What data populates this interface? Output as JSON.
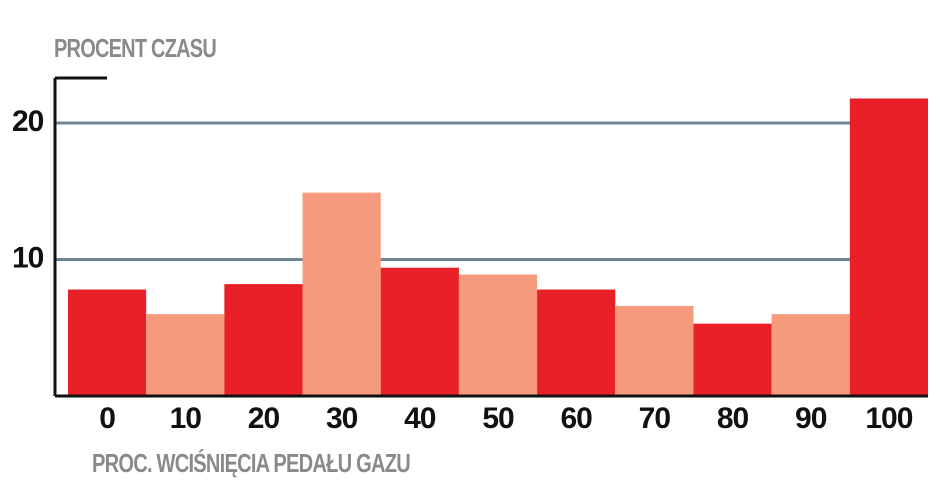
{
  "chart_data": {
    "type": "bar",
    "title": "PROCENT CZASU",
    "x_label": "PROC. WCIŚNIĘCIA PEDAŁU GAZU",
    "categories": [
      "0",
      "10",
      "20",
      "30",
      "40",
      "50",
      "60",
      "70",
      "80",
      "90",
      "100"
    ],
    "values": [
      7.8,
      6.0,
      8.2,
      14.9,
      9.4,
      8.9,
      7.8,
      6.6,
      5.3,
      6.0,
      21.8
    ],
    "colors": [
      "#e92027",
      "#f59a7c",
      "#e92027",
      "#f59a7c",
      "#e92027",
      "#f59a7c",
      "#e92027",
      "#f59a7c",
      "#e92027",
      "#f59a7c",
      "#e92027"
    ],
    "ylim": [
      0,
      23.3
    ],
    "yticks": [
      10,
      20
    ],
    "grid": true
  }
}
